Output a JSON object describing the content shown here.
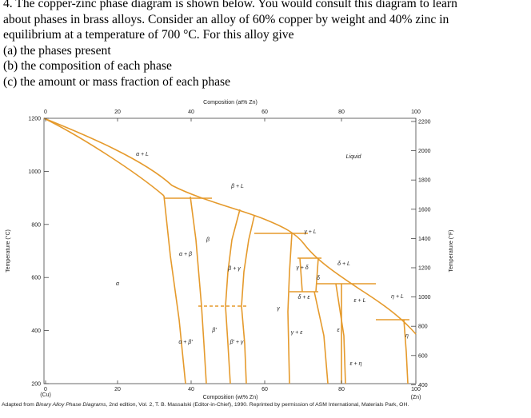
{
  "question": {
    "lines": [
      "4. The copper-zinc phase diagram is shown below.  You would consult this diagram to learn",
      "about phases in brass alloys.  Consider an alloy of 60% copper by weight and 40% zinc in",
      "equilibrium at a temperature of 700 °C. For this alloy give",
      "(a) the phases present",
      "(b) the composition of each phase",
      "(c) the amount or mass fraction of each phase"
    ]
  },
  "figure": {
    "top_axis_title": "Composition (at% Zn)",
    "top_ticks": [
      "0",
      "20",
      "40",
      "60",
      "80",
      "100"
    ],
    "left_axis_title": "Temperature (°C)",
    "left_ticks": [
      "1200",
      "1000",
      "800",
      "600",
      "400",
      "200"
    ],
    "right_axis_title": "Temperature (°F)",
    "right_ticks": [
      "2200",
      "2000",
      "1800",
      "1600",
      "1400",
      "1200",
      "1000",
      "800",
      "600",
      "400"
    ],
    "bottom_ticks": [
      "0",
      "20",
      "40",
      "60",
      "80",
      "100"
    ],
    "bottom_axis_title": "Composition (wt% Zn)",
    "left_end": "(Cu)",
    "right_end": "(Zn)",
    "regions": [
      "α + L",
      "Liquid",
      "β + L",
      "α",
      "β",
      "α + β",
      "β + γ",
      "γ",
      "γ + L",
      "γ + δ",
      "δ + L",
      "δ",
      "δ + ε",
      "ε",
      "ε + L",
      "η + L",
      "ε + η",
      "η",
      "β′",
      "α + β′",
      "β′ + γ",
      "γ + ε"
    ],
    "credit": [
      "Adapted from ",
      "Binary Alloy Phase Diagrams",
      ", 2nd edition, Vol. 2, T. B. Massalski (Editor-in-Chief), 1990. Reprinted by permission of ASM International, Materials Park, OH."
    ]
  }
}
